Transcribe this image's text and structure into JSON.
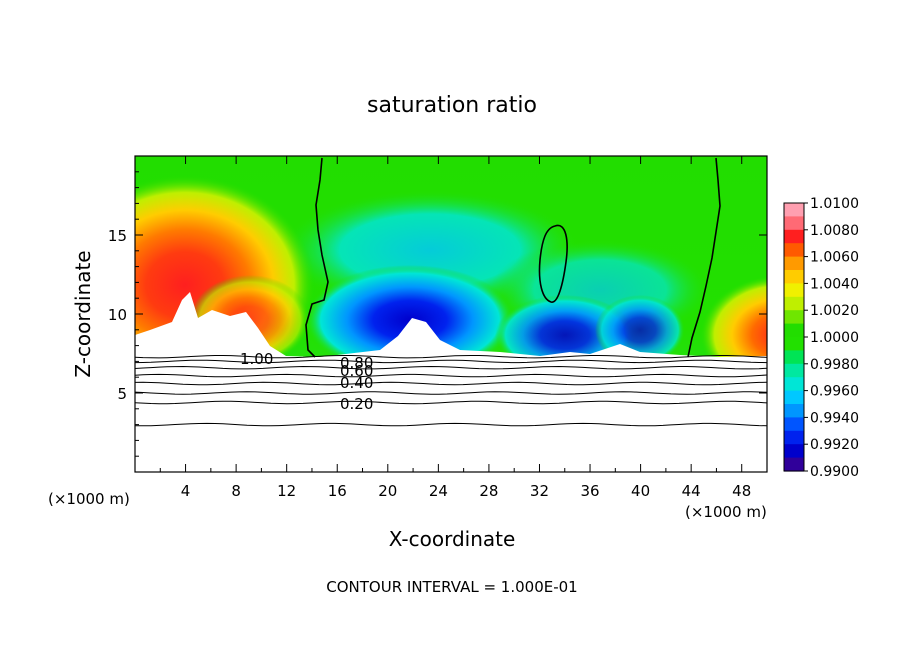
{
  "chart_data": {
    "type": "heatmap",
    "title": "saturation ratio",
    "xlabel": "X-coordinate",
    "ylabel": "Z-coordinate",
    "x_unit": "(×1000 m)",
    "x_unit_right": "(×1000 m)",
    "footer": "CONTOUR INTERVAL = 1.000E-01",
    "xlim": [
      0,
      50
    ],
    "ylim": [
      0,
      20
    ],
    "x_ticks": [
      "4",
      "8",
      "12",
      "16",
      "20",
      "24",
      "28",
      "32",
      "36",
      "40",
      "44",
      "48"
    ],
    "y_ticks": [
      "5",
      "10",
      "15"
    ],
    "grid": false,
    "colorbar": {
      "placement": "right",
      "labels": [
        "1.0100",
        "1.0080",
        "1.0060",
        "1.0040",
        "1.0020",
        "1.0000",
        "0.9980",
        "0.9960",
        "0.9940",
        "0.9920",
        "0.9900"
      ],
      "colors": [
        "#ff9fb0",
        "#ff6a75",
        "#ff1f1f",
        "#ff5a00",
        "#ff9a00",
        "#ffcc00",
        "#f0f000",
        "#bfef00",
        "#6fe600",
        "#22dd00",
        "#22e000",
        "#00e455",
        "#00e8a0",
        "#00e6d6",
        "#00c8ff",
        "#0096ff",
        "#0055ff",
        "#0022ee",
        "#0000cc",
        "#30009a"
      ]
    },
    "contour_labels": [
      "1.00",
      "0.80",
      "0.60",
      "0.40",
      "0.20"
    ],
    "contour_levels": [
      1.0,
      0.8,
      0.6,
      0.4,
      0.2
    ],
    "contour_line_z": [
      7.3,
      7.0,
      6.6,
      6.1,
      5.6,
      5.0,
      4.4,
      3.0
    ],
    "saturation_contour_x": [
      15,
      45
    ],
    "closed_contour_center": [
      33,
      13.5
    ],
    "regions": [
      {
        "x_range": [
          0,
          12
        ],
        "z_range": [
          8,
          17
        ],
        "value_max": 1.009,
        "color": "#ff1f1f"
      },
      {
        "x_range": [
          17,
          30
        ],
        "z_range": [
          7.5,
          12
        ],
        "value_min": 0.99,
        "color": "#0000cc"
      },
      {
        "x_range": [
          44,
          50
        ],
        "z_range": [
          7.5,
          12
        ],
        "value_max": 1.007,
        "color": "#ff1f1f"
      }
    ]
  }
}
